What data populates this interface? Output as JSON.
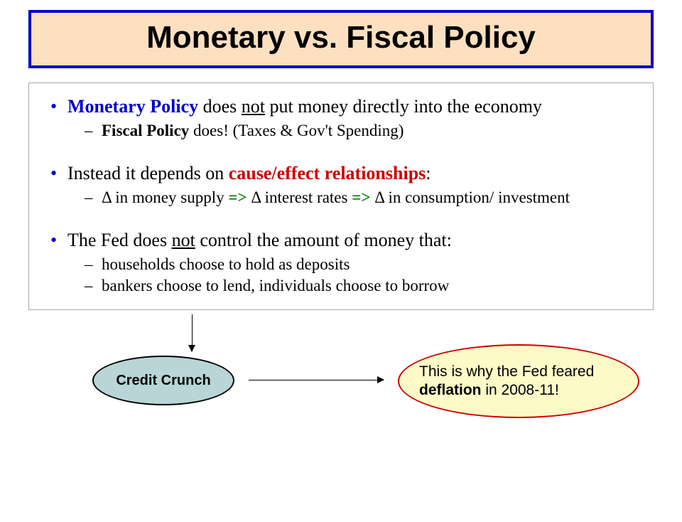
{
  "title": "Monetary vs. Fiscal Policy",
  "bullets": {
    "b1": {
      "lead": "Monetary Policy",
      "mid": " does ",
      "not": "not",
      "tail": " put money directly into the economy",
      "sub1_lead": "Fiscal Policy",
      "sub1_tail": " does! (Taxes & Gov't Spending)"
    },
    "b2": {
      "lead": "Instead it depends on ",
      "red": "cause/effect relationships",
      "tail": ":",
      "sub1_a": "Δ in money supply ",
      "sub1_arrow1": "=>",
      "sub1_b": " Δ interest rates ",
      "sub1_arrow2": "=>",
      "sub1_c": " Δ in consumption/ investment"
    },
    "b3": {
      "lead": "The Fed does ",
      "not": "not",
      "tail": " control the amount of money that:",
      "sub1": "households choose to hold as deposits",
      "sub2": "bankers choose to lend, individuals choose to borrow"
    }
  },
  "diagram": {
    "credit_label": "Credit Crunch",
    "note_a": "This is why the Fed feared ",
    "note_bold": "deflation",
    "note_b": " in 2008-11!"
  },
  "colors": {
    "title_border": "#0000cc",
    "title_bg": "#fde0c0",
    "bullet_marker": "#0000cc",
    "red": "#cc0000",
    "green": "#008000",
    "ellipse_bg": "#b9d5d7",
    "note_bg": "#fdfac8",
    "note_border": "#cc0000"
  }
}
